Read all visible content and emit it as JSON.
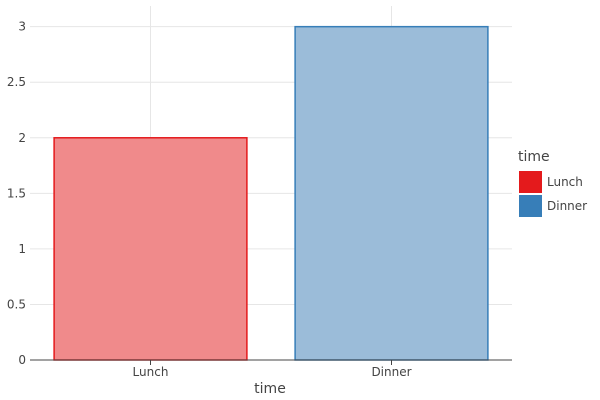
{
  "chart_data": {
    "type": "bar",
    "categories": [
      "Lunch",
      "Dinner"
    ],
    "values": [
      2,
      3
    ],
    "xlabel": "time",
    "ylabel": "",
    "ylim": [
      0,
      3.15
    ],
    "yticks": [
      0,
      0.5,
      1,
      1.5,
      2,
      2.5,
      3
    ],
    "ytick_labels": [
      "0",
      "0.5",
      "1",
      "1.5",
      "2",
      "2.5",
      "3"
    ],
    "grid": true,
    "legend": {
      "title": "time",
      "placement": "right",
      "items": [
        {
          "label": "Lunch",
          "color": "#e41a1c"
        },
        {
          "label": "Dinner",
          "color": "#377eb8"
        }
      ]
    },
    "colors": {
      "Lunch": {
        "fill": "#f08a8b",
        "stroke": "#e41a1c"
      },
      "Dinner": {
        "fill": "#9bbcd9",
        "stroke": "#377eb8"
      }
    }
  }
}
